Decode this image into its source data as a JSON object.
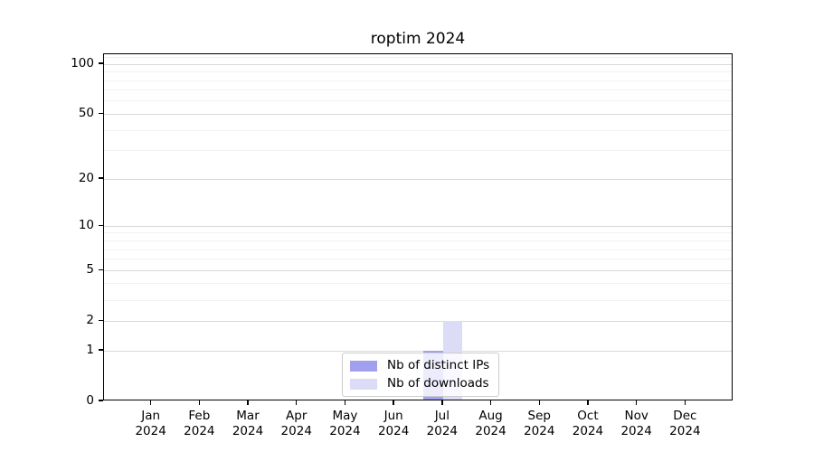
{
  "chart_data": {
    "type": "bar",
    "title": "roptim 2024",
    "categories": [
      "Jan 2024",
      "Feb 2024",
      "Mar 2024",
      "Apr 2024",
      "May 2024",
      "Jun 2024",
      "Jul 2024",
      "Aug 2024",
      "Sep 2024",
      "Oct 2024",
      "Nov 2024",
      "Dec 2024"
    ],
    "series": [
      {
        "name": "Nb of distinct IPs",
        "color": "#a0a0ef",
        "values": [
          0,
          0,
          0,
          0,
          0,
          0,
          1,
          0,
          0,
          0,
          0,
          0
        ]
      },
      {
        "name": "Nb of downloads",
        "color": "#dcdcf7",
        "values": [
          0,
          0,
          0,
          0,
          0,
          0,
          2,
          0,
          0,
          0,
          0,
          0
        ]
      }
    ],
    "xlabel": "",
    "ylabel": "",
    "yscale": "log1p",
    "ylim": [
      0,
      115
    ],
    "y_major_ticks": [
      0,
      1,
      2,
      5,
      10,
      20,
      50,
      100
    ],
    "y_minor_ticks": [
      3,
      4,
      6,
      7,
      8,
      9,
      30,
      40,
      60,
      70,
      80,
      90,
      110
    ],
    "grid": true,
    "legend_position": "lower center",
    "colors": {
      "background": "#ffffff",
      "grid_major": "#d9d9d9",
      "grid_minor": "#f2f2f2",
      "spine": "#000000",
      "legend_border": "#cccccc",
      "text": "#000000"
    }
  }
}
